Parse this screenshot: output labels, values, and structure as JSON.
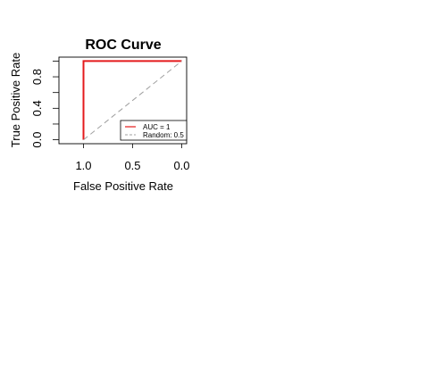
{
  "chart_data": {
    "type": "line",
    "title": "ROC Curve",
    "xlabel": "False Positive Rate",
    "ylabel": "True Positive Rate",
    "x_axis_reversed": true,
    "xlim": [
      1.25,
      -0.05
    ],
    "ylim": [
      -0.05,
      1.05
    ],
    "x_ticks": [
      1.0,
      0.5,
      0.0
    ],
    "x_tick_labels": [
      "1.0",
      "0.5",
      "0.0"
    ],
    "y_ticks": [
      0.0,
      0.4,
      0.8
    ],
    "y_tick_labels": [
      "0.0",
      "0.4",
      "0.8"
    ],
    "y_minor_ticks": [
      0.2,
      0.6,
      1.0
    ],
    "grid": false,
    "legend_position": "bottom-right",
    "series": [
      {
        "name": "AUC = 1",
        "color": "#e41a1c",
        "style": "solid",
        "x": [
          1.0,
          1.0,
          0.0
        ],
        "y": [
          0.0,
          1.0,
          1.0
        ]
      },
      {
        "name": "Random: 0.5",
        "color": "#a0a0a0",
        "style": "dashed",
        "x": [
          1.0,
          0.0
        ],
        "y": [
          0.0,
          1.0
        ]
      }
    ]
  }
}
